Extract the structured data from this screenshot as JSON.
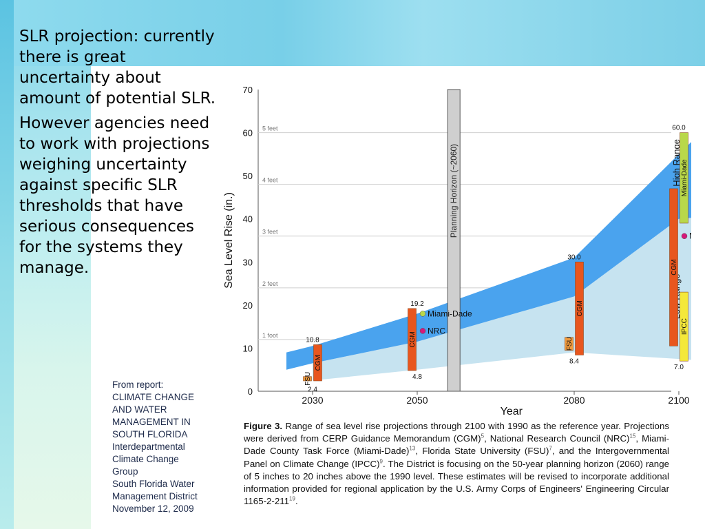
{
  "bullets": [
    "SLR projection: currently there is great uncertainty about amount of potential SLR.",
    "However agencies need to work with projections weighing uncertainty against specific SLR thresholds that have serious consequences for the systems they manage."
  ],
  "source_lines": [
    "From report:",
    "CLIMATE CHANGE",
    "AND WATER",
    "MANAGEMENT IN",
    "SOUTH FLORIDA",
    "Interdepartmental",
    "Climate Change",
    "Group",
    "South Florida Water",
    "Management District",
    "November 12, 2009"
  ],
  "caption": {
    "label": "Figure 3.",
    "parts": [
      {
        "t": " Range of sea level rise projections through 2100 with 1990 as the reference year. Projections were derived from CERP Guidance Memorandum (CGM)"
      },
      {
        "sup": "5"
      },
      {
        "t": ", National Research Council (NRC)"
      },
      {
        "sup": "15"
      },
      {
        "t": ", Miami-Dade County Task Force (Miami-Dade)"
      },
      {
        "sup": "13"
      },
      {
        "t": ", Florida State University (FSU)"
      },
      {
        "sup": "7"
      },
      {
        "t": ", and the Intergovernmental Panel on Climate Change (IPCC)"
      },
      {
        "sup": "9"
      },
      {
        "t": ". The District is focusing on the 50-year planning horizon (2060) range of 5 inches to 20 inches above the 1990 level. These estimates will be revised to incorporate additional information provided for regional application by the U.S. Army Corps of Engineers' Engineering Circular 1165-2-211"
      },
      {
        "sup": "19"
      },
      {
        "t": "."
      }
    ]
  },
  "chart_data": {
    "type": "area",
    "xlabel": "Year",
    "ylabel": "Sea Level Rise (in.)",
    "ylim": [
      0,
      70
    ],
    "yticks": [
      0,
      10,
      20,
      30,
      40,
      50,
      60,
      70
    ],
    "xticks": [
      2030,
      2050,
      2080,
      2100
    ],
    "feet_lines": [
      {
        "label": "1 foot",
        "y": 12
      },
      {
        "label": "2 feet",
        "y": 24
      },
      {
        "label": "3 feet",
        "y": 36
      },
      {
        "label": "4 feet",
        "y": 48
      },
      {
        "label": "5 feet",
        "y": 60
      }
    ],
    "high_range": {
      "label": "High Range",
      "color": "#4aa3ee",
      "x": [
        2025,
        2030,
        2050,
        2080,
        2100,
        2110
      ],
      "upper": [
        9,
        10.5,
        18,
        31,
        55,
        67
      ],
      "lower": [
        5,
        6.5,
        11.5,
        22,
        40,
        41
      ]
    },
    "low_range": {
      "label": "Low Range",
      "color": "#c6e3f0",
      "x": [
        2030,
        2050,
        2080,
        2100,
        2110
      ],
      "upper": [
        6.5,
        11.5,
        22,
        40,
        41
      ],
      "lower": [
        2.5,
        5,
        9,
        7.5,
        6.5
      ]
    },
    "planning_horizon": {
      "label": "Planning Horizon (~2060)",
      "x": 2057
    },
    "bars": [
      {
        "name": "FSU",
        "x": 2030,
        "offset": -1,
        "low": 2.4,
        "high": 3.4,
        "color": "#f29b3c"
      },
      {
        "name": "CGM",
        "x": 2030,
        "offset": 1,
        "low": 2.4,
        "high": 10.8,
        "color": "#e8561e"
      },
      {
        "name": "CGM",
        "x": 2050,
        "offset": -1,
        "low": 4.8,
        "high": 19.2,
        "color": "#e8561e"
      },
      {
        "name": "FSU",
        "x": 2080,
        "offset": -1,
        "low": 9.5,
        "high": 12.5,
        "color": "#f29b3c"
      },
      {
        "name": "CGM",
        "x": 2080,
        "offset": 1,
        "low": 8.4,
        "high": 30.0,
        "color": "#e8561e"
      },
      {
        "name": "CGM",
        "x": 2100,
        "offset": -1,
        "low": 10.5,
        "high": 47,
        "color": "#e8561e"
      },
      {
        "name": "Miami-Dade",
        "x": 2100,
        "offset": 1,
        "low": 39,
        "high": 60.0,
        "color": "#b9d84a"
      },
      {
        "name": "IPCC",
        "x": 2100,
        "offset": 1,
        "low": 7.0,
        "high": 23,
        "color": "#f4e83a"
      }
    ],
    "value_labels": [
      {
        "text": "2.4",
        "x": 2030,
        "y": 2.4,
        "pos": "below",
        "offset": -0.6
      },
      {
        "text": "10.8",
        "x": 2030,
        "y": 10.8,
        "pos": "above",
        "offset": 0
      },
      {
        "text": "19.2",
        "x": 2050,
        "y": 19.2,
        "pos": "above",
        "offset": 0
      },
      {
        "text": "4.8",
        "x": 2050,
        "y": 4.8,
        "pos": "below",
        "offset": 0
      },
      {
        "text": "30.0",
        "x": 2080,
        "y": 30.0,
        "pos": "above",
        "offset": 0
      },
      {
        "text": "8.4",
        "x": 2080,
        "y": 8.4,
        "pos": "below",
        "offset": 0
      },
      {
        "text": "60.0",
        "x": 2100,
        "y": 60.0,
        "pos": "above",
        "offset": 0
      },
      {
        "text": "7.0",
        "x": 2100,
        "y": 7.0,
        "pos": "below",
        "offset": 0
      }
    ],
    "points": [
      {
        "name": "Miami-Dade",
        "x": 2050,
        "y": 18,
        "color": "#b9d84a"
      },
      {
        "name": "NRC",
        "x": 2050,
        "y": 14,
        "color": "#d6187a"
      },
      {
        "name": "NRC",
        "x": 2100,
        "y": 36,
        "color": "#d6187a"
      }
    ]
  }
}
